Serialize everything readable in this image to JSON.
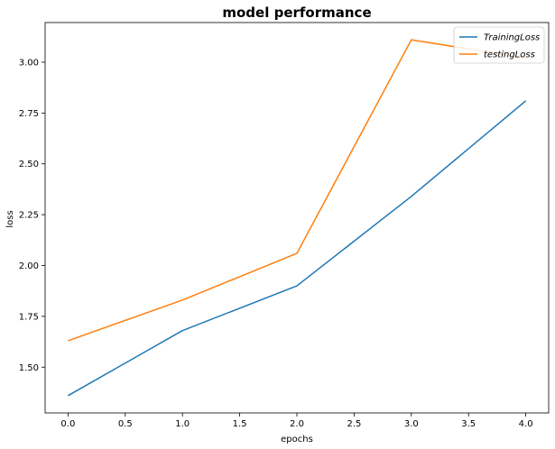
{
  "chart_data": {
    "type": "line",
    "title": "model performance",
    "xlabel": "epochs",
    "ylabel": "loss",
    "x": [
      0,
      1,
      2,
      3,
      4
    ],
    "series": [
      {
        "name": "TrainingLoss",
        "color": "#1f77b4",
        "values": [
          1.36,
          1.68,
          1.9,
          2.34,
          2.81
        ]
      },
      {
        "name": "testingLoss",
        "color": "#ff7f0e",
        "values": [
          1.63,
          1.83,
          2.06,
          3.11,
          3.02
        ]
      }
    ],
    "xlim": [
      -0.2,
      4.2
    ],
    "ylim": [
      1.275,
      3.195
    ],
    "xticks": [
      "0.0",
      "0.5",
      "1.0",
      "1.5",
      "2.0",
      "2.5",
      "3.0",
      "3.5",
      "4.0"
    ],
    "yticks": [
      "1.50",
      "1.75",
      "2.00",
      "2.25",
      "2.50",
      "2.75",
      "3.00"
    ],
    "grid": false,
    "legend_position": "top-right"
  }
}
